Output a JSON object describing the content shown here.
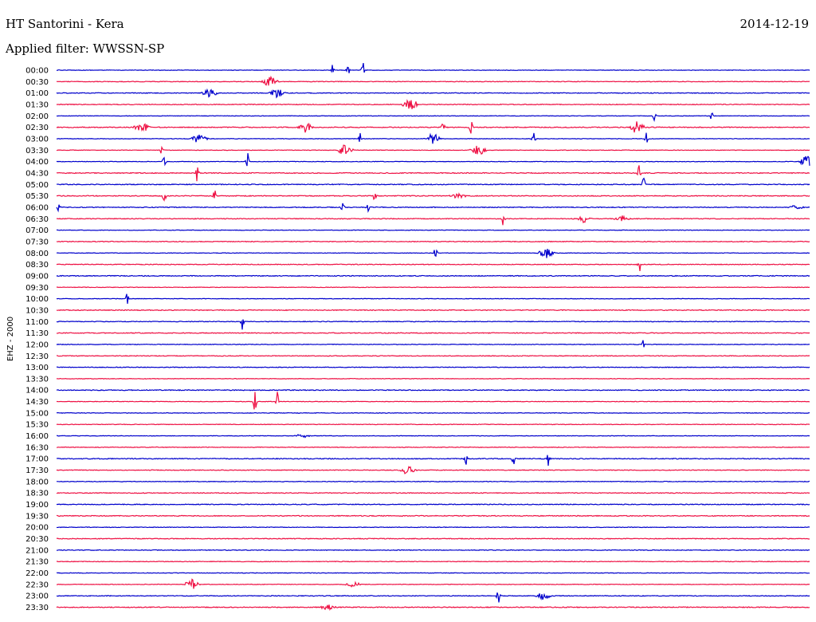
{
  "header": {
    "station": "HT Santorini - Kera",
    "date": "2014-12-19",
    "filter": "Applied filter: WWSSN-SP"
  },
  "chart_data": {
    "type": "line",
    "title": "HT Santorini - Kera",
    "subtitle": "Applied filter: WWSSN-SP",
    "date": "2014-12-19",
    "ylabel": "EHZ - 2000",
    "xlabel": "",
    "row_labels": [
      "00:00",
      "00:30",
      "01:00",
      "01:30",
      "02:00",
      "02:30",
      "03:00",
      "03:30",
      "04:00",
      "04:30",
      "05:00",
      "05:30",
      "06:00",
      "06:30",
      "07:00",
      "07:30",
      "08:00",
      "08:30",
      "09:00",
      "09:30",
      "10:00",
      "10:30",
      "11:00",
      "11:30",
      "12:00",
      "12:30",
      "13:00",
      "13:30",
      "14:00",
      "14:30",
      "15:00",
      "15:30",
      "16:00",
      "16:30",
      "17:00",
      "17:30",
      "18:00",
      "18:30",
      "19:00",
      "19:30",
      "20:00",
      "20:30",
      "21:00",
      "21:30",
      "22:00",
      "22:30",
      "23:00",
      "23:30"
    ],
    "row_colors": [
      "#0000cc",
      "#ee1144"
    ],
    "events": [
      {
        "row": "00:00",
        "minute": 11.0,
        "amp": 11
      },
      {
        "row": "00:00",
        "minute": 11.6,
        "amp": 10
      },
      {
        "row": "00:00",
        "minute": 12.2,
        "amp": 12
      },
      {
        "row": "00:30",
        "minute": 8.5,
        "amp": 7
      },
      {
        "row": "01:00",
        "minute": 6.1,
        "amp": 6
      },
      {
        "row": "01:00",
        "minute": 8.8,
        "amp": 6
      },
      {
        "row": "01:30",
        "minute": 14.1,
        "amp": 8
      },
      {
        "row": "02:00",
        "minute": 23.8,
        "amp": 9
      },
      {
        "row": "02:00",
        "minute": 26.1,
        "amp": 9
      },
      {
        "row": "02:30",
        "minute": 3.4,
        "amp": 8
      },
      {
        "row": "02:30",
        "minute": 9.9,
        "amp": 8
      },
      {
        "row": "02:30",
        "minute": 15.4,
        "amp": 9
      },
      {
        "row": "02:30",
        "minute": 16.5,
        "amp": 11
      },
      {
        "row": "02:30",
        "minute": 23.1,
        "amp": 8
      },
      {
        "row": "03:00",
        "minute": 5.7,
        "amp": 7
      },
      {
        "row": "03:00",
        "minute": 12.1,
        "amp": 9
      },
      {
        "row": "03:00",
        "minute": 15.0,
        "amp": 8
      },
      {
        "row": "03:00",
        "minute": 19.0,
        "amp": 9
      },
      {
        "row": "03:00",
        "minute": 23.5,
        "amp": 9
      },
      {
        "row": "03:30",
        "minute": 4.2,
        "amp": 9
      },
      {
        "row": "03:30",
        "minute": 11.5,
        "amp": 8
      },
      {
        "row": "03:30",
        "minute": 16.8,
        "amp": 8
      },
      {
        "row": "04:00",
        "minute": 4.3,
        "amp": 14
      },
      {
        "row": "04:00",
        "minute": 7.6,
        "amp": 14
      },
      {
        "row": "04:00",
        "minute": 29.9,
        "amp": 8
      },
      {
        "row": "04:30",
        "minute": 5.6,
        "amp": 12
      },
      {
        "row": "04:30",
        "minute": 23.2,
        "amp": 10
      },
      {
        "row": "05:00",
        "minute": 23.4,
        "amp": 12
      },
      {
        "row": "05:30",
        "minute": 4.3,
        "amp": 12
      },
      {
        "row": "05:30",
        "minute": 6.3,
        "amp": 9
      },
      {
        "row": "05:30",
        "minute": 12.7,
        "amp": 14
      },
      {
        "row": "05:30",
        "minute": 16.0,
        "amp": 4
      },
      {
        "row": "06:00",
        "minute": 0.1,
        "amp": 9
      },
      {
        "row": "06:00",
        "minute": 11.4,
        "amp": 10
      },
      {
        "row": "06:00",
        "minute": 12.4,
        "amp": 12
      },
      {
        "row": "06:00",
        "minute": 29.5,
        "amp": 3
      },
      {
        "row": "06:30",
        "minute": 17.8,
        "amp": 10
      },
      {
        "row": "06:30",
        "minute": 21.0,
        "amp": 5
      },
      {
        "row": "06:30",
        "minute": 22.5,
        "amp": 4
      },
      {
        "row": "08:00",
        "minute": 15.1,
        "amp": 12
      },
      {
        "row": "08:00",
        "minute": 19.5,
        "amp": 7
      },
      {
        "row": "08:30",
        "minute": 23.2,
        "amp": 14
      },
      {
        "row": "10:00",
        "minute": 2.8,
        "amp": 13
      },
      {
        "row": "11:00",
        "minute": 7.4,
        "amp": 12
      },
      {
        "row": "12:00",
        "minute": 23.4,
        "amp": 11
      },
      {
        "row": "14:30",
        "minute": 7.9,
        "amp": 14
      },
      {
        "row": "14:30",
        "minute": 8.8,
        "amp": 14
      },
      {
        "row": "16:00",
        "minute": 9.8,
        "amp": 3
      },
      {
        "row": "17:00",
        "minute": 16.3,
        "amp": 10
      },
      {
        "row": "17:00",
        "minute": 18.2,
        "amp": 10
      },
      {
        "row": "17:00",
        "minute": 19.6,
        "amp": 11
      },
      {
        "row": "17:30",
        "minute": 14.0,
        "amp": 6
      },
      {
        "row": "22:30",
        "minute": 5.4,
        "amp": 7
      },
      {
        "row": "22:30",
        "minute": 11.8,
        "amp": 4
      },
      {
        "row": "23:00",
        "minute": 17.6,
        "amp": 12
      },
      {
        "row": "23:00",
        "minute": 19.4,
        "amp": 6
      },
      {
        "row": "23:30",
        "minute": 10.8,
        "amp": 4
      }
    ],
    "xlim": [
      0,
      30
    ],
    "grid": false,
    "legend": "none"
  }
}
